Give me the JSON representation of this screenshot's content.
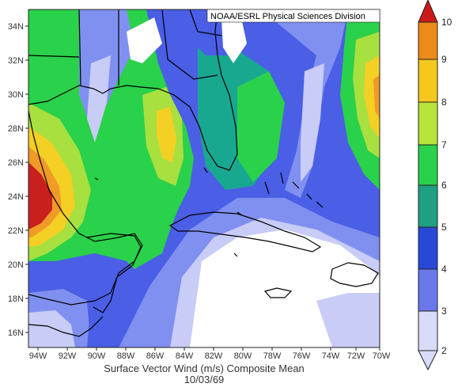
{
  "map": {
    "credit": "NOAA/ESRL Physical Sciences Division",
    "title": "Surface Vector Wind (m/s) Composite Mean",
    "date": "10/03/69",
    "lat_labels": [
      "34N",
      "32N",
      "30N",
      "28N",
      "26N",
      "24N",
      "22N",
      "20N",
      "18N",
      "16N"
    ],
    "lon_labels": [
      "94W",
      "92W",
      "90W",
      "88W",
      "86W",
      "84W",
      "82W",
      "80W",
      "78W",
      "76W",
      "74W",
      "72W",
      "70W"
    ]
  },
  "colorbar": {
    "labels": [
      "10",
      "9",
      "8",
      "7",
      "6",
      "5",
      "4",
      "3",
      "2"
    ],
    "colors": [
      "#cc1a1a",
      "#ee8a1a",
      "#f6c81e",
      "#b8e43a",
      "#2ad14a",
      "#1fa080",
      "#2848d8",
      "#6a78ec",
      "#d8dcfa"
    ]
  },
  "palette": {
    "white": "#ffffff",
    "pale": "#c8ccf6",
    "light_blue": "#8090f0",
    "blue": "#4a5ee6",
    "dark_blue": "#2a46d6",
    "teal": "#18a890",
    "green": "#2ad14a",
    "lime": "#a8e040",
    "yellow": "#f4d024",
    "orange": "#f09a28",
    "red": "#c8201c"
  }
}
